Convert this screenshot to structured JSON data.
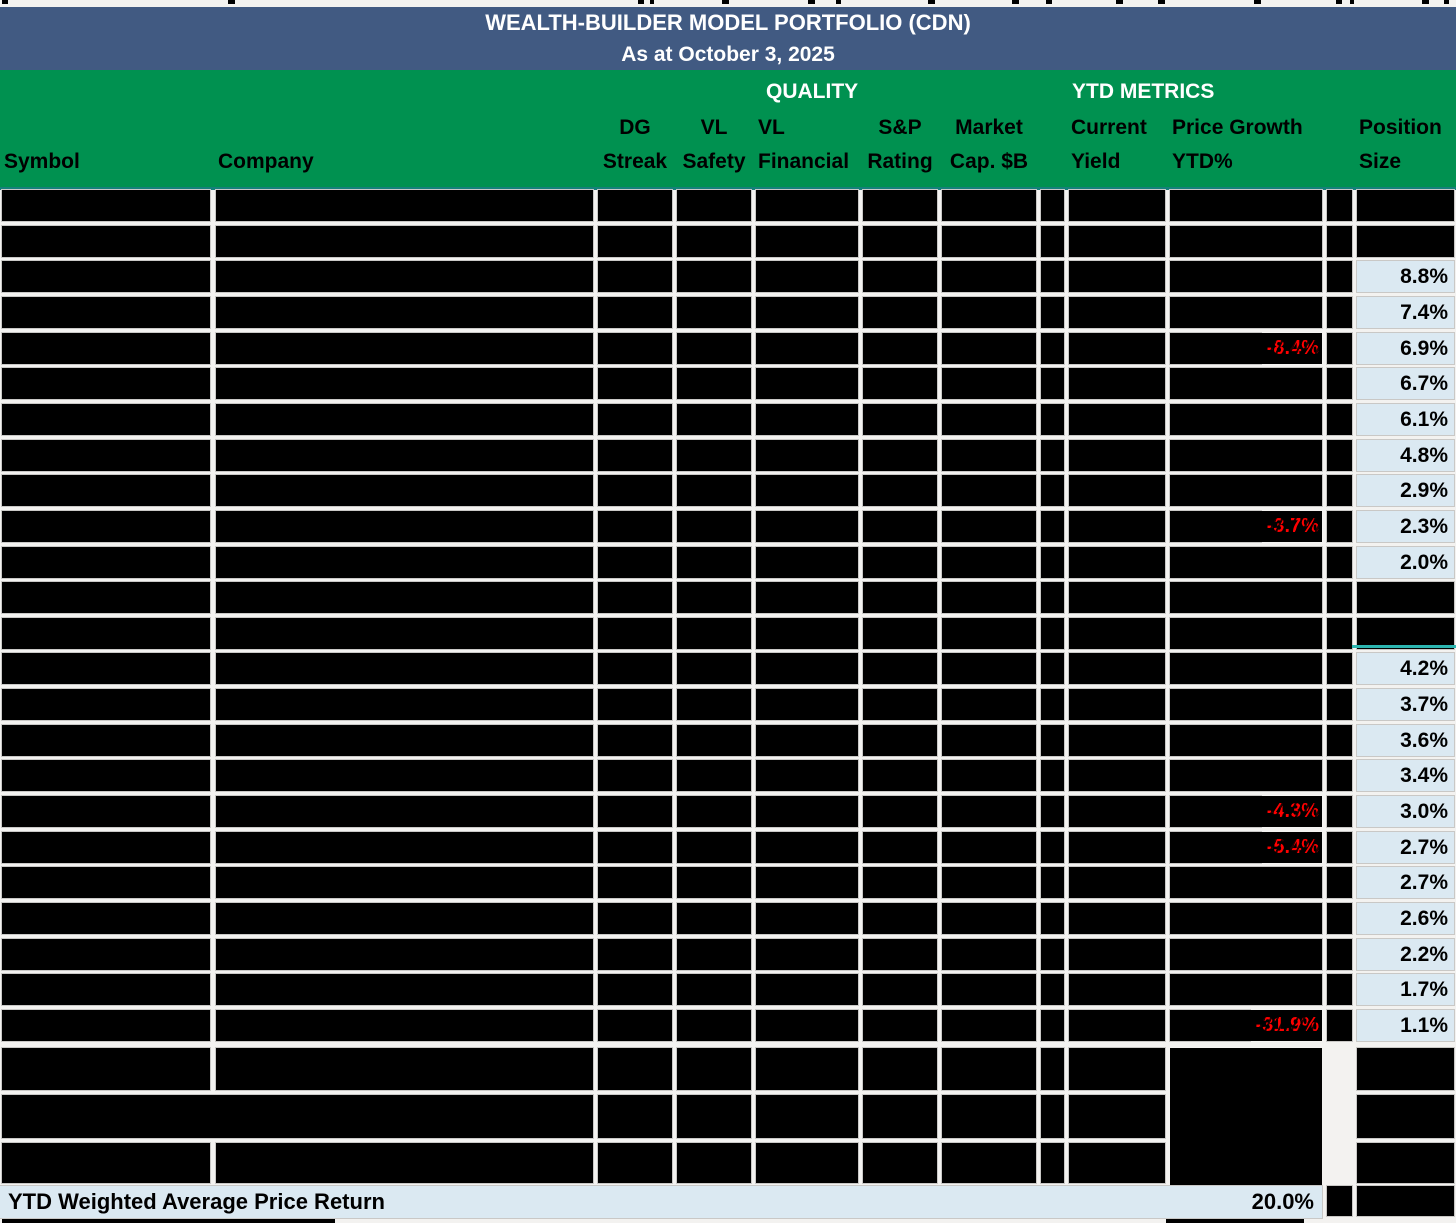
{
  "title": "WEALTH-BUILDER MODEL PORTFOLIO (CDN)",
  "date_line": "As at October 3, 2025",
  "groups": {
    "quality": "QUALITY",
    "ytd_metrics": "YTD METRICS"
  },
  "columns": [
    {
      "line1": "",
      "line2": "Symbol"
    },
    {
      "line1": "",
      "line2": "Company"
    },
    {
      "line1": "DG",
      "line2": "Streak"
    },
    {
      "line1": "VL",
      "line2": "Safety"
    },
    {
      "line1": "VL",
      "line2": "Financial"
    },
    {
      "line1": "S&P",
      "line2": "Rating"
    },
    {
      "line1": "Market",
      "line2": "Cap. $B"
    },
    {
      "line1": "Current",
      "line2": "Yield"
    },
    {
      "line1": "Price Growth",
      "line2": "YTD%"
    },
    {
      "line1": "Position",
      "line2": "Size"
    }
  ],
  "rows": [
    {
      "kind": "redacted",
      "position_size": "",
      "price_growth_ytd": ""
    },
    {
      "kind": "redacted",
      "position_size": "",
      "price_growth_ytd": ""
    },
    {
      "kind": "data",
      "position_size": "8.8%",
      "price_growth_ytd": ""
    },
    {
      "kind": "data",
      "position_size": "7.4%",
      "price_growth_ytd": ""
    },
    {
      "kind": "data",
      "position_size": "6.9%",
      "price_growth_ytd": "-8.4%"
    },
    {
      "kind": "data",
      "position_size": "6.7%",
      "price_growth_ytd": ""
    },
    {
      "kind": "data",
      "position_size": "6.1%",
      "price_growth_ytd": ""
    },
    {
      "kind": "data",
      "position_size": "4.8%",
      "price_growth_ytd": ""
    },
    {
      "kind": "data",
      "position_size": "2.9%",
      "price_growth_ytd": ""
    },
    {
      "kind": "data",
      "position_size": "2.3%",
      "price_growth_ytd": "-3.7%"
    },
    {
      "kind": "data",
      "position_size": "2.0%",
      "price_growth_ytd": ""
    },
    {
      "kind": "redacted",
      "position_size": "",
      "price_growth_ytd": ""
    },
    {
      "kind": "redacted",
      "position_size": "",
      "price_growth_ytd": ""
    },
    {
      "kind": "data",
      "position_size": "4.2%",
      "price_growth_ytd": ""
    },
    {
      "kind": "data",
      "position_size": "3.7%",
      "price_growth_ytd": ""
    },
    {
      "kind": "data",
      "position_size": "3.6%",
      "price_growth_ytd": ""
    },
    {
      "kind": "data",
      "position_size": "3.4%",
      "price_growth_ytd": ""
    },
    {
      "kind": "data",
      "position_size": "3.0%",
      "price_growth_ytd": "-4.3%"
    },
    {
      "kind": "data",
      "position_size": "2.7%",
      "price_growth_ytd": "-5.4%"
    },
    {
      "kind": "data",
      "position_size": "2.7%",
      "price_growth_ytd": ""
    },
    {
      "kind": "data",
      "position_size": "2.6%",
      "price_growth_ytd": ""
    },
    {
      "kind": "data",
      "position_size": "2.2%",
      "price_growth_ytd": ""
    },
    {
      "kind": "data",
      "position_size": "1.7%",
      "price_growth_ytd": ""
    },
    {
      "kind": "data",
      "position_size": "1.1%",
      "price_growth_ytd": "-31.9%"
    }
  ],
  "footer_rows": [
    {
      "kind": "redacted",
      "merged_symbol_company": false
    },
    {
      "kind": "redacted",
      "merged_symbol_company": true
    },
    {
      "kind": "redacted",
      "merged_symbol_company": false
    }
  ],
  "summary": {
    "label": "YTD Weighted Average Price Return",
    "value": "20.0%"
  },
  "colors": {
    "banner_blue": "#415a82",
    "header_green": "#009150",
    "teal_line": "#15807b",
    "teal_accent": "#2cb5b0",
    "light_blue_cell": "#dbe9f2",
    "negative_red": "#ff0000",
    "redaction_black": "#000000"
  }
}
